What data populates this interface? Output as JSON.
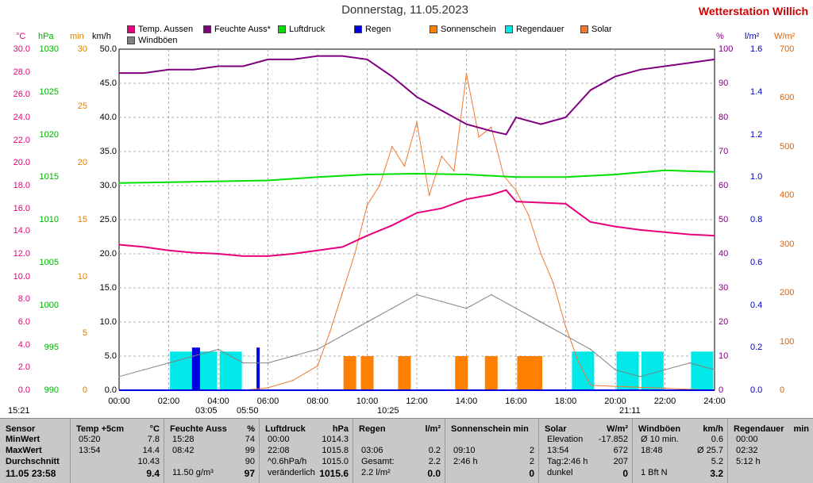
{
  "title": "Donnerstag, 11.05.2023",
  "station": "Wetterstation Willich",
  "legend": [
    {
      "label": "Temp. Aussen",
      "color": "#e8007c"
    },
    {
      "label": "Feuchte Auss*",
      "color": "#800080"
    },
    {
      "label": "Luftdruck",
      "color": "#00e000"
    },
    {
      "label": "Regen",
      "color": "#0000e0"
    },
    {
      "label": "Sonnenschein",
      "color": "#ff8000"
    },
    {
      "label": "Regendauer",
      "color": "#00e8e8"
    },
    {
      "label": "Solar",
      "color": "#f07830"
    },
    {
      "label": "Windböen",
      "color": "#808080"
    }
  ],
  "axes": {
    "temp": {
      "unit": "°C",
      "color": "#e8007c",
      "ticks": [
        "30.0",
        "28.0",
        "26.0",
        "24.0",
        "22.0",
        "20.0",
        "18.0",
        "16.0",
        "14.0",
        "12.0",
        "10.0",
        "8.0",
        "6.0",
        "4.0",
        "2.0",
        "0.0"
      ]
    },
    "hpa": {
      "unit": "hPa",
      "color": "#00b000",
      "ticks": [
        "1030",
        "1025",
        "1020",
        "1015",
        "1010",
        "1005",
        "1000",
        "995",
        "990"
      ]
    },
    "min": {
      "unit": "min",
      "color": "#e08000",
      "ticks": [
        "30",
        "25",
        "20",
        "15",
        "10",
        "5",
        "0"
      ]
    },
    "kmh": {
      "unit": "km/h",
      "color": "#000000",
      "ticks": [
        "50.0",
        "45.0",
        "40.0",
        "35.0",
        "30.0",
        "25.0",
        "20.0",
        "15.0",
        "10.0",
        "5.0",
        "0.0"
      ]
    },
    "pct": {
      "unit": "%",
      "color": "#800080",
      "ticks": [
        "100",
        "90",
        "80",
        "70",
        "60",
        "50",
        "40",
        "30",
        "20",
        "10",
        "0"
      ]
    },
    "lm2": {
      "unit": "l/m²",
      "color": "#0000c0",
      "ticks": [
        "1.6",
        "1.4",
        "1.2",
        "1.0",
        "0.8",
        "0.6",
        "0.4",
        "0.2",
        "0.0"
      ]
    },
    "wm2": {
      "unit": "W/m²",
      "color": "#e06000",
      "ticks": [
        "700",
        "600",
        "500",
        "400",
        "300",
        "200",
        "100",
        "0"
      ]
    }
  },
  "xticks": [
    "00:00",
    "02:00",
    "04:00",
    "06:00",
    "08:00",
    "10:00",
    "12:00",
    "14:00",
    "16:00",
    "18:00",
    "20:00",
    "22:00",
    "24:00"
  ],
  "sun_labels": [
    "15:21",
    "03:05",
    "05:50",
    "10:25",
    "21:11"
  ],
  "chart_data": {
    "type": "line",
    "x_unit": "hour",
    "x_range": [
      0,
      24
    ],
    "series": [
      {
        "name": "Temp. Aussen",
        "unit": "°C",
        "x": [
          0,
          1,
          2,
          3,
          4,
          5,
          6,
          7,
          8,
          9,
          10,
          11,
          12,
          13,
          14,
          15,
          15.6,
          16,
          17,
          18,
          19,
          20,
          21,
          22,
          23,
          24
        ],
        "values": [
          12.8,
          12.6,
          12.3,
          12.1,
          12.0,
          11.8,
          11.8,
          12.0,
          12.3,
          12.6,
          13.6,
          14.5,
          15.6,
          16.0,
          16.8,
          17.2,
          17.6,
          16.6,
          16.5,
          16.4,
          14.8,
          14.4,
          14.1,
          13.9,
          13.7,
          13.6
        ]
      },
      {
        "name": "Feuchte Auss*",
        "unit": "%",
        "x": [
          0,
          1,
          2,
          3,
          4,
          5,
          6,
          7,
          8,
          9,
          10,
          11,
          12,
          13,
          14,
          15,
          15.6,
          16,
          17,
          18,
          19,
          20,
          21,
          22,
          23,
          24
        ],
        "values": [
          93,
          93,
          94,
          94,
          95,
          95,
          97,
          97,
          98,
          98,
          97,
          92,
          86,
          82,
          78,
          76,
          75,
          80,
          78,
          80,
          88,
          92,
          94,
          95,
          96,
          97
        ]
      },
      {
        "name": "Luftdruck",
        "unit": "hPa",
        "x": [
          0,
          2,
          4,
          6,
          8,
          10,
          12,
          14,
          16,
          18,
          20,
          22,
          24
        ],
        "values": [
          1014.3,
          1014.4,
          1014.5,
          1014.6,
          1015.0,
          1015.3,
          1015.4,
          1015.3,
          1015.0,
          1015.0,
          1015.3,
          1015.8,
          1015.6
        ]
      },
      {
        "name": "Solar",
        "unit": "W/m²",
        "x": [
          0,
          5,
          6,
          7,
          8,
          8.5,
          9,
          9.5,
          10,
          10.5,
          11,
          11.5,
          12,
          12.5,
          13,
          13.5,
          14,
          14.5,
          15,
          15.5,
          16,
          16.5,
          17,
          17.5,
          18,
          18.5,
          19,
          24
        ],
        "values": [
          0,
          0,
          5,
          20,
          50,
          120,
          200,
          280,
          380,
          420,
          500,
          460,
          550,
          400,
          480,
          450,
          650,
          520,
          540,
          440,
          410,
          360,
          280,
          220,
          130,
          60,
          10,
          0
        ]
      },
      {
        "name": "Windböen",
        "unit": "km/h",
        "x": [
          0,
          1,
          2,
          3,
          4,
          5,
          6,
          7,
          8,
          9,
          10,
          11,
          12,
          13,
          14,
          15,
          16,
          17,
          18,
          19,
          20,
          21,
          22,
          23,
          24
        ],
        "values": [
          2,
          3,
          4,
          5,
          6,
          4,
          4,
          5,
          6,
          8,
          10,
          12,
          14,
          13,
          12,
          14,
          12,
          10,
          8,
          6,
          3,
          2,
          3,
          4,
          3
        ]
      },
      {
        "name": "Sonnenschein",
        "unit": "min",
        "x": [
          9.3,
          10,
          11.5,
          13.8,
          15,
          16.3,
          16.8
        ],
        "values": [
          2,
          2,
          2,
          2,
          2,
          2,
          2
        ]
      },
      {
        "name": "Regendauer",
        "unit": "min",
        "x": [
          2.5,
          3.5,
          4.5,
          18.7,
          20.5,
          21.5,
          23.5
        ],
        "values": [
          2,
          2,
          2,
          2,
          2,
          2,
          2
        ]
      },
      {
        "name": "Regen",
        "unit": "l/m²",
        "x": [
          3.1,
          5.7
        ],
        "values": [
          0.2,
          0.2
        ]
      }
    ]
  },
  "table": {
    "headers": [
      {
        "label": "Sensor"
      },
      {
        "label": "Temp +5cm",
        "unit": "°C"
      },
      {
        "label": "Feuchte Auss",
        "unit": "%"
      },
      {
        "label": "Luftdruck",
        "unit": "hPa"
      },
      {
        "label": "Regen",
        "unit": "l/m²"
      },
      {
        "label": "Sonnenschein min"
      },
      {
        "label": "Solar",
        "unit": "W/m²"
      },
      {
        "label": "Windböen",
        "unit": "km/h"
      },
      {
        "label": "Regendauer",
        "unit": "min"
      }
    ],
    "rows": {
      "labels": [
        "MinWert",
        "MaxWert",
        "Durchschnitt",
        "11.05 23:58"
      ],
      "temp": [
        [
          "05:20",
          "7.8"
        ],
        [
          "13:54",
          "14.4"
        ],
        [
          "",
          "10.43"
        ],
        [
          "",
          "9.4"
        ]
      ],
      "feuchte": [
        [
          "15:28",
          "74"
        ],
        [
          "08:42",
          "99"
        ],
        [
          "",
          "90"
        ],
        [
          "11.50 g/m³",
          "97"
        ]
      ],
      "druck": [
        [
          "00:00",
          "1014.3"
        ],
        [
          "22:08",
          "1015.8"
        ],
        [
          "^0.6hPa/h",
          "1015.0"
        ],
        [
          "veränderlich",
          "1015.6"
        ]
      ],
      "regen": [
        [
          "",
          ""
        ],
        [
          "03:06",
          "0.2"
        ],
        [
          "Gesamt:",
          "2.2"
        ],
        [
          "2.2 l/m²",
          "0.0"
        ]
      ],
      "sonne": [
        [
          "",
          ""
        ],
        [
          "09:10",
          "2"
        ],
        [
          "2:46 h",
          "2"
        ],
        [
          "",
          "0"
        ]
      ],
      "solar": [
        [
          "Elevation",
          "-17.852"
        ],
        [
          "13:54",
          "672"
        ],
        [
          "Tag:2:46 h",
          "207"
        ],
        [
          "dunkel",
          "0"
        ]
      ],
      "wind": [
        [
          "Ø 10 min.",
          "0.6"
        ],
        [
          "18:48",
          "Ø 25.7"
        ],
        [
          "",
          "5.2"
        ],
        [
          "1 Bft N",
          "3.2"
        ]
      ],
      "regendauer": [
        [
          "00:00",
          ""
        ],
        [
          "02:32",
          ""
        ],
        [
          "5:12 h",
          ""
        ],
        [
          "",
          ""
        ]
      ]
    }
  }
}
